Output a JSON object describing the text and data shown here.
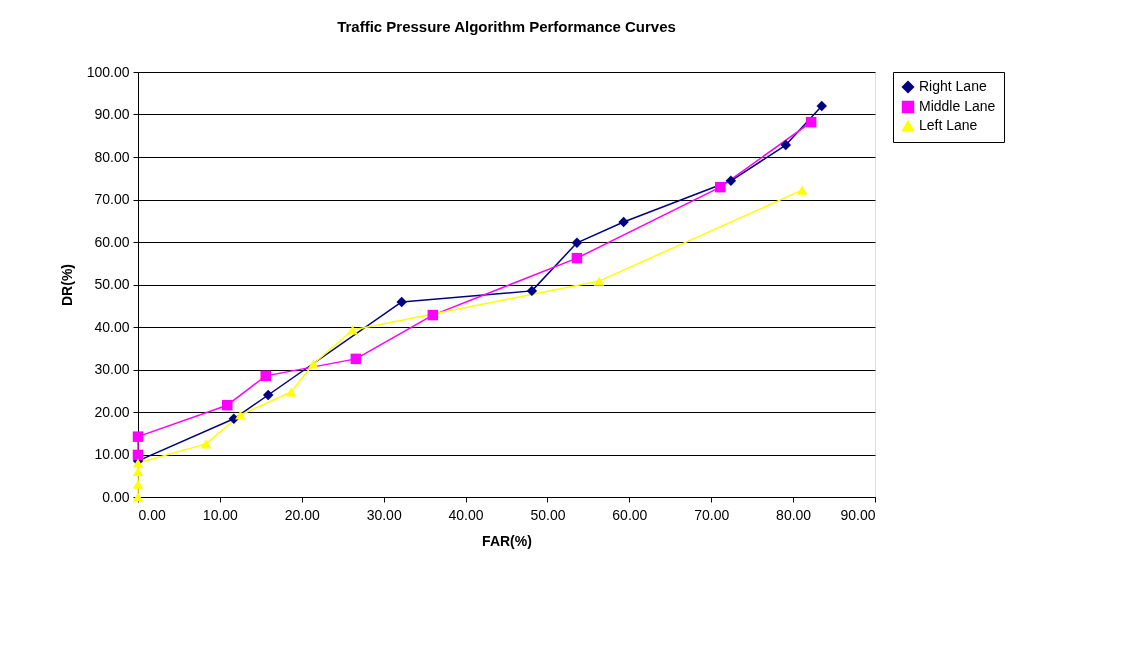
{
  "chart_data": {
    "type": "line",
    "title": "Traffic Pressure Algorithm Performance Curves",
    "xlabel": "FAR(%)",
    "ylabel": "DR(%)",
    "xlim": [
      0,
      90
    ],
    "xticks": [
      {
        "value": 0,
        "label": "0.00"
      },
      {
        "value": 10,
        "label": "10.00"
      },
      {
        "value": 20,
        "label": "20.00"
      },
      {
        "value": 30,
        "label": "30.00"
      },
      {
        "value": 40,
        "label": "40.00"
      },
      {
        "value": 50,
        "label": "50.00"
      },
      {
        "value": 60,
        "label": "60.00"
      },
      {
        "value": 70,
        "label": "70.00"
      },
      {
        "value": 80,
        "label": "80.00"
      },
      {
        "value": 90,
        "label": "90.00"
      }
    ],
    "ylim": [
      0,
      100
    ],
    "yticks": [
      {
        "value": 0,
        "label": "0.00"
      },
      {
        "value": 10,
        "label": "10.00"
      },
      {
        "value": 20,
        "label": "20.00"
      },
      {
        "value": 30,
        "label": "30.00"
      },
      {
        "value": 40,
        "label": "40.00"
      },
      {
        "value": 50,
        "label": "50.00"
      },
      {
        "value": 60,
        "label": "60.00"
      },
      {
        "value": 70,
        "label": "70.00"
      },
      {
        "value": 80,
        "label": "80.00"
      },
      {
        "value": 90,
        "label": "90.00"
      },
      {
        "value": 100,
        "label": "100.00"
      }
    ],
    "grid": "y",
    "legend": "right",
    "line_style": "solid",
    "series": [
      {
        "name": "Right Lane",
        "color": "#000080",
        "marker": "diamond",
        "x": [
          0,
          11.7,
          15.9,
          32.2,
          48.1,
          53.6,
          59.3,
          72.4,
          79.1,
          83.5
        ],
        "values": [
          8.5,
          18.4,
          24.0,
          45.9,
          48.5,
          59.8,
          64.7,
          74.4,
          82.8,
          92.0
        ]
      },
      {
        "name": "Middle Lane",
        "color": "#ff00ff",
        "marker": "square",
        "x": [
          0,
          0,
          10.9,
          15.6,
          26.6,
          36.0,
          53.6,
          71.1,
          82.2
        ],
        "values": [
          9.9,
          14.2,
          21.6,
          28.5,
          32.5,
          42.8,
          56.2,
          72.9,
          88.2
        ]
      },
      {
        "name": "Left Lane",
        "color": "#ffff00",
        "marker": "triangle",
        "x": [
          0,
          0,
          0,
          0,
          8.3,
          12.5,
          18.7,
          21.4,
          26.2,
          56.3,
          81.1
        ],
        "values": [
          0,
          3,
          6,
          8,
          12.5,
          19.3,
          24.7,
          31.3,
          39.3,
          50.8,
          72.2
        ]
      }
    ]
  }
}
